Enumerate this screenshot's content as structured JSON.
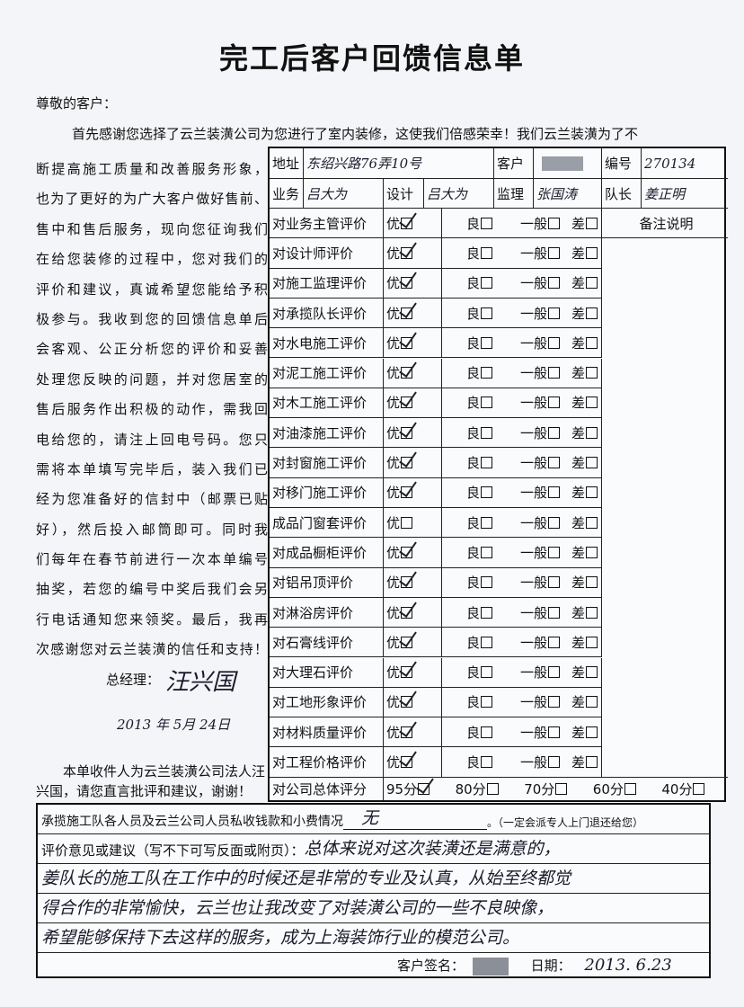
{
  "title": "完工后客户回馈信息单",
  "greeting": "尊敬的客户：",
  "intro_first_line": "首先感谢您选择了云兰装潢公司为您进行了室内装修，这使我们倍感荣幸！我们云兰装潢为了不",
  "intro_lines": [
    "断提高施工质量和改善服务形象，",
    "也为了更好的为广大客户做好售前、",
    "售中和售后服务，现向您征询我们",
    "在给您装修的过程中，您对我们的",
    "评价和建议，真诚希望您能给予积",
    "极参与。我收到您的回馈信息单后",
    "会客观、公正分析您的评价和妥善",
    "处理您反映的问题，并对您居室的",
    "售后服务作出积极的动作，需我回",
    "电给您的，请注上回电号码。您只",
    "需将本单填写完毕后，装入我们已",
    "经为您准备好的信封中（邮票已贴",
    "好），然后投入邮筒即可。同时我",
    "们每年在春节前进行一次本单编号",
    "抽奖，若您的编号中奖后我们会另",
    "行电话通知您来领奖。最后，我再",
    "次感谢您对云兰装潢的信任和支持！"
  ],
  "general_manager": {
    "label": "总经理：",
    "signature": "汪兴国",
    "date": "2013 年 5月 24日"
  },
  "recipient_note": "本单收件人为云兰装潢公司法人汪兴国，请您直言批评和建议，谢谢！",
  "header": {
    "address_label": "地址",
    "address_value": "东绍兴路76弄10号",
    "customer_label": "客户",
    "customer_value": "",
    "number_label": "编号",
    "number_value": "270134",
    "business_label": "业务",
    "business_value": "吕大为",
    "design_label": "设计",
    "design_value": "吕大为",
    "supervisor_label": "监理",
    "supervisor_value": "张国涛",
    "captain_label": "队长",
    "captain_value": "姜正明"
  },
  "rating_options": [
    "优",
    "良",
    "一般",
    "差"
  ],
  "remarks_label": "备注说明",
  "evaluations": [
    {
      "label": "对业务主管评价",
      "selected": "优"
    },
    {
      "label": "对设计师评价",
      "selected": "优"
    },
    {
      "label": "对施工监理评价",
      "selected": "优"
    },
    {
      "label": "对承揽队长评价",
      "selected": "优"
    },
    {
      "label": "对水电施工评价",
      "selected": "优"
    },
    {
      "label": "对泥工施工评价",
      "selected": "优"
    },
    {
      "label": "对木工施工评价",
      "selected": "优"
    },
    {
      "label": "对油漆施工评价",
      "selected": "优"
    },
    {
      "label": "对封窗施工评价",
      "selected": "优"
    },
    {
      "label": "对移门施工评价",
      "selected": "优"
    },
    {
      "label": "成品门窗套评价",
      "selected": ""
    },
    {
      "label": "对成品橱柜评价",
      "selected": "优"
    },
    {
      "label": "对铝吊顶评价",
      "selected": "优"
    },
    {
      "label": "对淋浴房评价",
      "selected": "优"
    },
    {
      "label": "对石膏线评价",
      "selected": "优"
    },
    {
      "label": "对大理石评价",
      "selected": "优"
    },
    {
      "label": "对工地形象评价",
      "selected": "优"
    },
    {
      "label": "对材料质量评价",
      "selected": "优"
    },
    {
      "label": "对工程价格评价",
      "selected": "优"
    }
  ],
  "overall": {
    "label": "对公司总体评分",
    "options": [
      "95分",
      "80分",
      "70分",
      "60分",
      "40分"
    ],
    "selected": "95分"
  },
  "private_fees": {
    "label": "承揽施工队各人员及云兰公司人员私收钱款和小费情况",
    "value": "无",
    "note": "。（一定会派专人上门退还给您）"
  },
  "comments": {
    "label": "评价意见或建议（写不下可写反面或附页）：",
    "lines": [
      "总体来说对这次装潢还是满意的，",
      "姜队长的施工队在工作中的时候还是非常的专业及认真，从始至终都觉",
      "得合作的非常愉快，云兰也让我改变了对装潢公司的一些不良映像，",
      "希望能够保持下去这样的服务，成为上海装饰行业的模范公司。"
    ]
  },
  "signature": {
    "label": "客户签名：",
    "date_label": "日期：",
    "date_value": "2013. 6.23"
  }
}
